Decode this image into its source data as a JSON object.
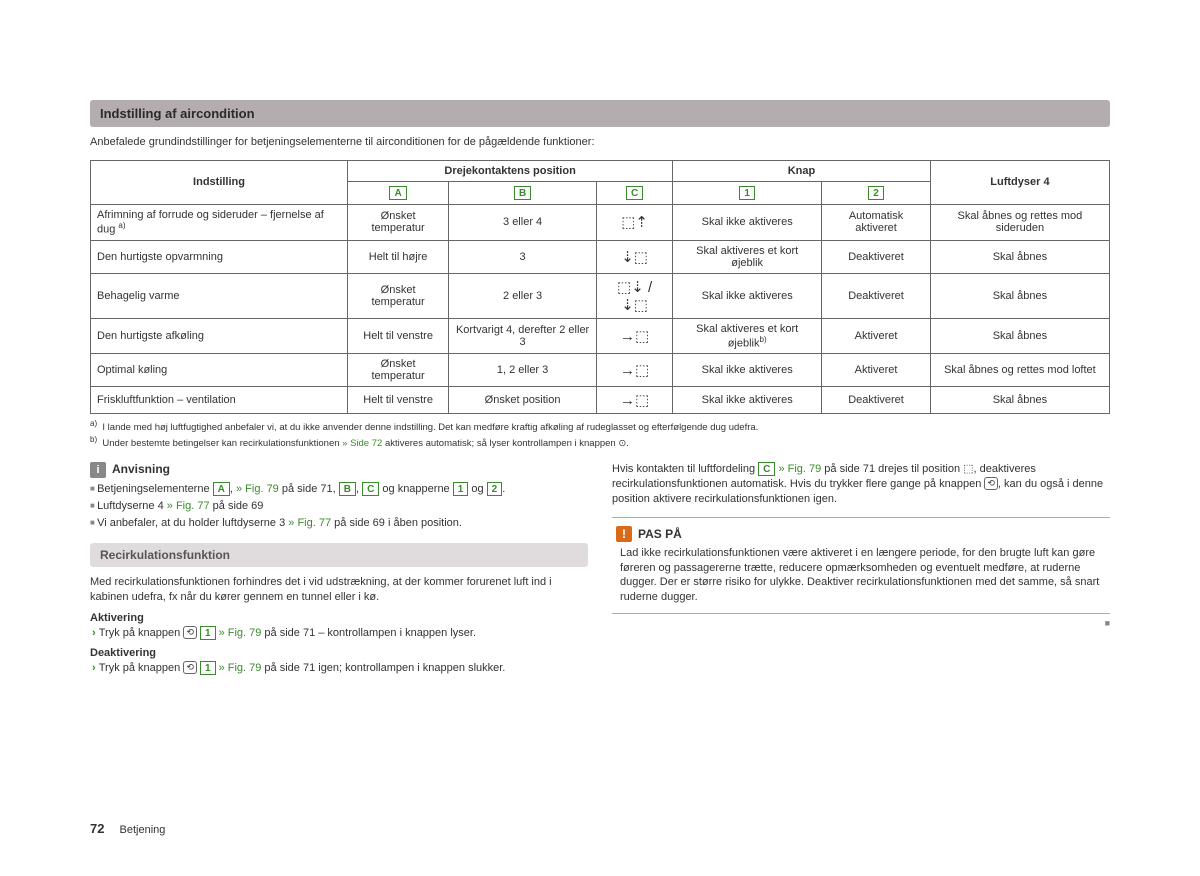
{
  "section1": {
    "title": "Indstilling af aircondition",
    "intro": "Anbefalede grundindstillinger for betjeningselementerne til airconditionen for de pågældende funktioner:"
  },
  "table": {
    "headers": {
      "setting": "Indstilling",
      "dial": "Drejekontaktens position",
      "button": "Knap",
      "vents": "Luftdyser 4",
      "colA": "A",
      "colB": "B",
      "colC": "C",
      "col1": "1",
      "col2": "2"
    },
    "rows": [
      {
        "s": "Afrimning af forrude og sideruder – fjernelse af dug ",
        "sfn": "a)",
        "a": "Ønsket temperatur",
        "b": "3 eller 4",
        "c": "⬚⇡",
        "k1": "Skal ikke aktiveres",
        "k2": "Automatisk aktiveret",
        "v": "Skal åbnes og rettes mod sideruden"
      },
      {
        "s": "Den hurtigste opvarmning",
        "a": "Helt til højre",
        "b": "3",
        "c": "⇣⬚",
        "k1": "Skal aktiveres et kort øjeblik",
        "k2": "Deaktiveret",
        "v": "Skal åbnes"
      },
      {
        "s": "Behagelig varme",
        "a": "Ønsket temperatur",
        "b": "2 eller 3",
        "c": "⬚⇣ / ⇣⬚",
        "k1": "Skal ikke aktiveres",
        "k2": "Deaktiveret",
        "v": "Skal åbnes"
      },
      {
        "s": "Den hurtigste afkøling",
        "a": "Helt til venstre",
        "b": "Kortvarigt 4, derefter 2 eller 3",
        "c": "→⬚",
        "k1": "Skal aktiveres et kort øjeblik",
        "k1fn": "b)",
        "k2": "Aktiveret",
        "v": "Skal åbnes"
      },
      {
        "s": "Optimal køling",
        "a": "Ønsket temperatur",
        "b": "1, 2 eller 3",
        "c": "→⬚",
        "k1": "Skal ikke aktiveres",
        "k2": "Aktiveret",
        "v": "Skal åbnes og rettes mod loftet"
      },
      {
        "s": "Friskluftfunktion – ventilation",
        "a": "Helt til venstre",
        "b": "Ønsket position",
        "c": "→⬚",
        "k1": "Skal ikke aktiveres",
        "k2": "Deaktiveret",
        "v": "Skal åbnes"
      }
    ]
  },
  "footnotes": {
    "a": "I lande med høj luftfugtighed anbefaler vi, at du ikke anvender denne indstilling. Det kan medføre kraftig afkøling af rudeglasset og efterfølgende dug udefra.",
    "b_pre": "Under bestemte betingelser kan recirkulationsfunktionen ",
    "b_link": "» Side 72",
    "b_post": " aktiveres automatisk; så lyser kontrollampen i knappen ⊙."
  },
  "anvisning": {
    "title": "Anvisning",
    "b1_pre": "Betjeningselementerne ",
    "b1_mid": ", ",
    "b1_fig": "» Fig. 79",
    "b1_page": " på side 71, ",
    "b1_and": " og knapperne ",
    "b1_og": " og ",
    "b1_end": ".",
    "b2_pre": "Luftdyserne 4 ",
    "b2_fig": "» Fig. 77",
    "b2_page": " på side 69",
    "b3_pre": "Vi anbefaler, at du holder luftdyserne 3 ",
    "b3_fig": "» Fig. 77",
    "b3_post": " på side 69 i åben position."
  },
  "recirc": {
    "title": "Recirkulationsfunktion",
    "intro": "Med recirkulationsfunktionen forhindres det i vid udstrækning, at der kommer forurenet luft ind i kabinen udefra, fx når du kører gennem en tunnel eller i kø.",
    "act_label": "Aktivering",
    "act_pre": "Tryk på knappen ",
    "act_fig": "» Fig. 79",
    "act_post": " på side 71 – kontrollampen i knappen lyser.",
    "deact_label": "Deaktivering",
    "deact_pre": "Tryk på knappen ",
    "deact_fig": "» Fig. 79",
    "deact_post": " på side 71 igen; kontrollampen i knappen slukker."
  },
  "rightcol": {
    "p1_pre": "Hvis kontakten til luftfordeling ",
    "p1_fig": "» Fig. 79",
    "p1_mid": " på side 71 drejes til position ⬚, deaktiveres recirkulationsfunktionen automatisk. Hvis du trykker flere gange på knappen ",
    "p1_post": ", kan du også i denne position aktivere recirkulationsfunktionen igen."
  },
  "paspaa": {
    "title": "PAS PÅ",
    "body": "Lad ikke recirkulationsfunktionen være aktiveret i en længere periode, for den brugte luft kan gøre føreren og passagererne trætte, reducere opmærksomheden og eventuelt medføre, at ruderne dugger. Der er større risiko for ulykke. Deaktiver recirkulationsfunktionen med det samme, så snart ruderne dugger."
  },
  "footer": {
    "page": "72",
    "chapter": "Betjening"
  }
}
